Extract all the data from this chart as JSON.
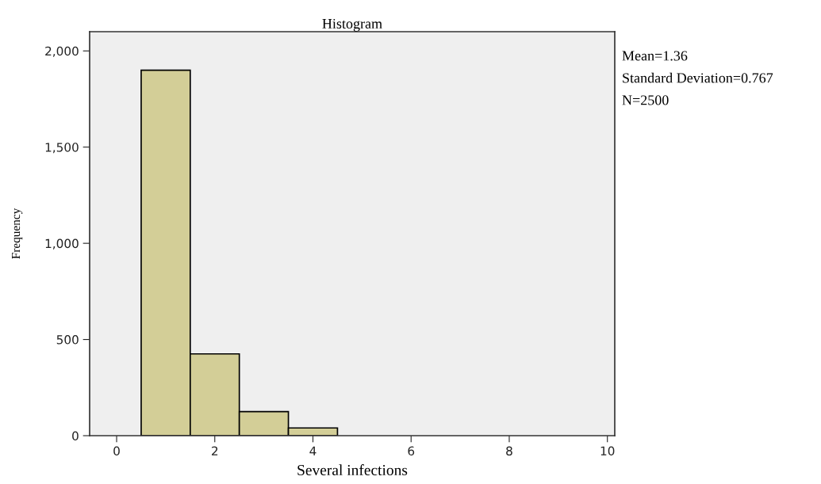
{
  "chart_data": {
    "type": "histogram",
    "title": "Histogram",
    "xlabel": "Several infections",
    "ylabel": "Frequency",
    "bins": [
      0.5,
      1.5,
      2.5,
      3.5,
      4.5,
      5.5,
      6.5,
      7.5,
      8.5,
      9.5
    ],
    "values": [
      1900,
      425,
      125,
      40,
      null,
      null,
      null,
      null,
      null
    ],
    "color": "#d3ce97",
    "xlim": [
      -0.55,
      10.15
    ],
    "xticks": [
      0,
      2,
      4,
      6,
      8,
      10
    ],
    "ylim": [
      0,
      2100
    ],
    "yticks": [
      0,
      {
        "value": 500,
        "label": "500"
      },
      {
        "value": 1000,
        "label": "1,000"
      },
      {
        "value": 1500,
        "label": "1,500"
      },
      {
        "value": 2000,
        "label": "2,000"
      }
    ],
    "grid": false,
    "annotations": [
      "Mean=1.36",
      "Standard Deviation=0.767",
      "N=2500"
    ]
  }
}
